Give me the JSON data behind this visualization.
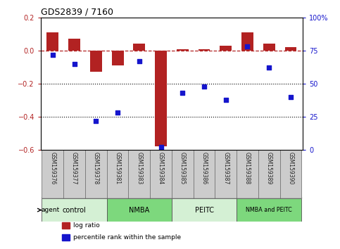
{
  "title": "GDS2839 / 7160",
  "samples": [
    "GSM159376",
    "GSM159377",
    "GSM159378",
    "GSM159381",
    "GSM159383",
    "GSM159384",
    "GSM159385",
    "GSM159386",
    "GSM159387",
    "GSM159388",
    "GSM159389",
    "GSM159390"
  ],
  "log_ratio": [
    0.11,
    0.07,
    -0.13,
    -0.09,
    0.04,
    -0.58,
    0.01,
    0.01,
    0.03,
    0.11,
    0.04,
    0.02
  ],
  "percentile_rank": [
    72,
    65,
    22,
    28,
    67,
    2,
    43,
    48,
    38,
    78,
    62,
    40
  ],
  "groups": [
    {
      "label": "control",
      "start": 0,
      "end": 3,
      "color": "#d4f0d4"
    },
    {
      "label": "NMBA",
      "start": 3,
      "end": 6,
      "color": "#7dd87d"
    },
    {
      "label": "PEITC",
      "start": 6,
      "end": 9,
      "color": "#d4f0d4"
    },
    {
      "label": "NMBA and PEITC",
      "start": 9,
      "end": 12,
      "color": "#7dd87d"
    }
  ],
  "bar_color": "#b22222",
  "dot_color": "#1515cc",
  "ylim_left": [
    -0.6,
    0.2
  ],
  "ylim_right": [
    0,
    100
  ],
  "yticks_left": [
    -0.6,
    -0.4,
    -0.2,
    0.0,
    0.2
  ],
  "yticks_right": [
    0,
    25,
    50,
    75,
    100
  ],
  "ytick_labels_right": [
    "0",
    "25",
    "50",
    "75",
    "100%"
  ],
  "hline_y": 0.0,
  "dotted_lines": [
    -0.2,
    -0.4
  ],
  "bar_width": 0.55,
  "agent_label": "agent",
  "legend_items": [
    {
      "label": "log ratio",
      "color": "#b22222"
    },
    {
      "label": "percentile rank within the sample",
      "color": "#1515cc"
    }
  ]
}
